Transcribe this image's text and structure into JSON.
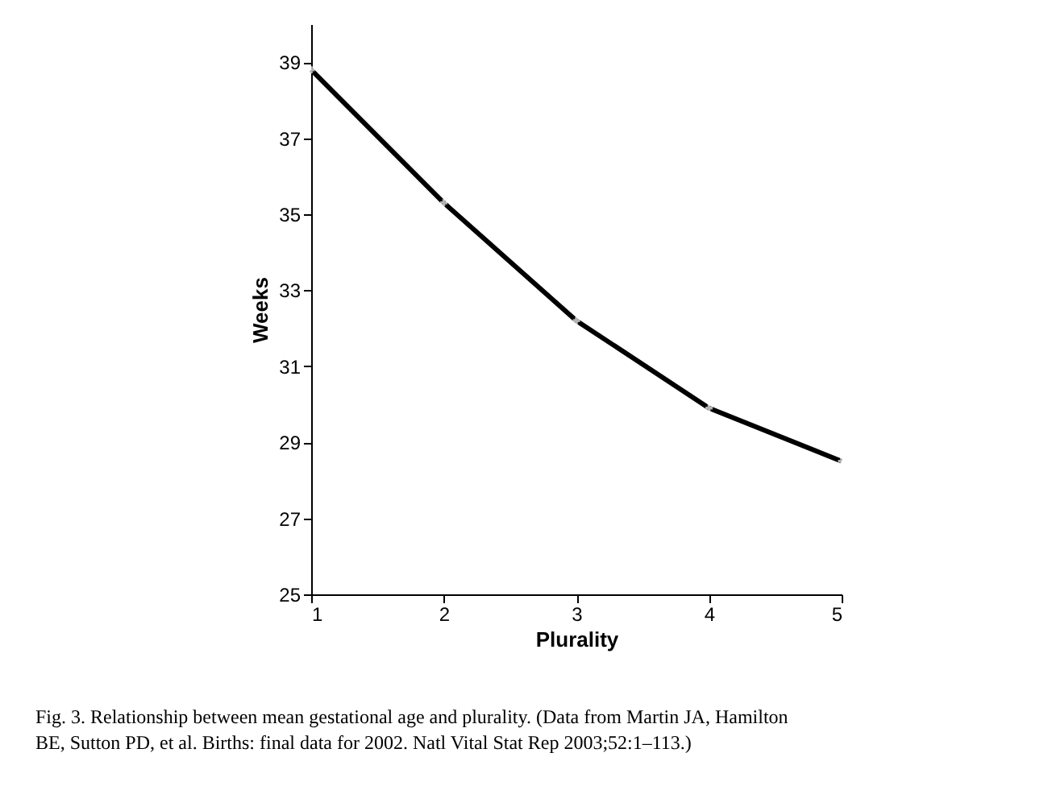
{
  "chart_data": {
    "type": "line",
    "xlabel": "Plurality",
    "ylabel": "Weeks",
    "x": [
      1,
      2,
      3,
      4,
      5
    ],
    "series": [
      {
        "color": "#000000",
        "values": [
          38.8,
          35.3,
          32.2,
          29.9,
          28.5
        ]
      }
    ],
    "xlim": [
      1,
      5
    ],
    "ylim": [
      25,
      40
    ],
    "xticks": [
      1,
      2,
      3,
      4,
      5
    ],
    "yticks": [
      25,
      27,
      29,
      31,
      33,
      35,
      37,
      39
    ],
    "grid": false,
    "marker": "cross",
    "line_style": "solid",
    "annotations": [
      "Fig. 3. Relationship between mean gestational age and plurality. (Data from Martin JA, Hamilton BE, Sutton PD, et al. Births: final data for 2002. Natl Vital Stat Rep 2003;52:1–113.)"
    ]
  }
}
